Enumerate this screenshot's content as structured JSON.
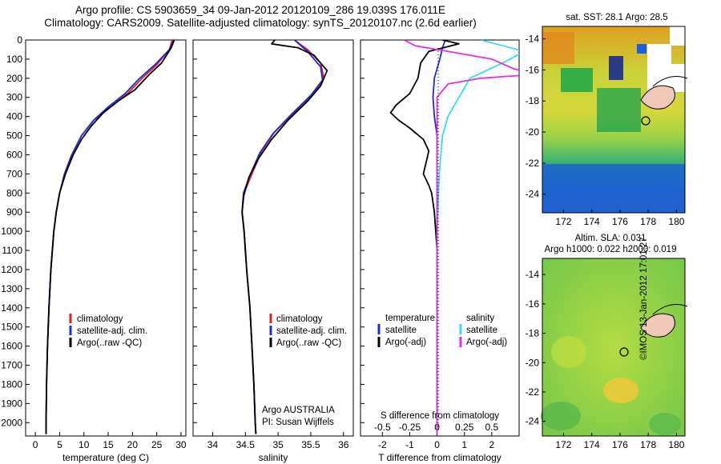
{
  "titles": {
    "line1": "Argo profile: CS 5903659_34 09-Jan-2012 20120109_286 19.039S 176.011E",
    "line2": "Climatology: CARS2009. Satellite-adjusted climatology: synTS_20120107.nc (2.6d earlier)"
  },
  "colors": {
    "climatology": "#e02020",
    "satellite": "#1a2be0",
    "argo": "#000000",
    "sat_sal": "#30e0f0",
    "argo_sal": "#e030e0"
  },
  "credit": "©IMOS 13-Jan-2012 17:01:27",
  "chart_data": [
    {
      "type": "line",
      "name": "temperature-profile",
      "xlabel": "temperature (deg C)",
      "xlim": [
        -2,
        31
      ],
      "xticks": [
        0,
        5,
        10,
        15,
        20,
        25,
        30
      ],
      "ylim": [
        2070,
        0
      ],
      "yticks": [
        0,
        100,
        200,
        300,
        400,
        500,
        600,
        700,
        800,
        900,
        1000,
        1100,
        1200,
        1300,
        1400,
        1500,
        1600,
        1700,
        1800,
        1900,
        2000
      ],
      "legend": [
        "climatology",
        "satellite-adj. clim.",
        "Argo(..raw -QC)"
      ],
      "series": [
        {
          "name": "climatology",
          "color": "#e02020",
          "points": [
            [
              28.2,
              0
            ],
            [
              27.6,
              50
            ],
            [
              25,
              130
            ],
            [
              22,
              200
            ],
            [
              19,
              280
            ],
            [
              15.5,
              350
            ],
            [
              12,
              420
            ],
            [
              9.5,
              500
            ],
            [
              7.5,
              600
            ],
            [
              6,
              700
            ],
            [
              5,
              800
            ],
            [
              4.3,
              900
            ],
            [
              3.8,
              1000
            ],
            [
              3.2,
              1200
            ],
            [
              2.8,
              1400
            ],
            [
              2.5,
              1600
            ],
            [
              2.3,
              1800
            ],
            [
              2.2,
              2000
            ],
            [
              2.2,
              2060
            ]
          ]
        },
        {
          "name": "satellite-adj. clim.",
          "color": "#1a2be0",
          "points": [
            [
              28.5,
              0
            ],
            [
              27.6,
              50
            ],
            [
              24.6,
              130
            ],
            [
              21.5,
              200
            ],
            [
              18.5,
              280
            ],
            [
              15,
              350
            ],
            [
              12,
              420
            ],
            [
              9.5,
              500
            ],
            [
              7.5,
              600
            ],
            [
              6,
              700
            ],
            [
              5,
              800
            ],
            [
              4.3,
              900
            ],
            [
              3.8,
              1000
            ],
            [
              3.2,
              1200
            ],
            [
              2.8,
              1400
            ],
            [
              2.5,
              1600
            ],
            [
              2.3,
              1800
            ],
            [
              2.2,
              2000
            ],
            [
              2.2,
              2060
            ]
          ]
        },
        {
          "name": "Argo(..raw -QC)",
          "color": "#000000",
          "points": [
            [
              28.6,
              0
            ],
            [
              28,
              40
            ],
            [
              26,
              120
            ],
            [
              23.5,
              180
            ],
            [
              20.5,
              260
            ],
            [
              17,
              320
            ],
            [
              14,
              380
            ],
            [
              11.5,
              450
            ],
            [
              9.5,
              520
            ],
            [
              7.8,
              600
            ],
            [
              6.2,
              700
            ],
            [
              5,
              800
            ],
            [
              4.3,
              900
            ],
            [
              3.8,
              1000
            ],
            [
              3.2,
              1200
            ],
            [
              2.8,
              1400
            ],
            [
              2.5,
              1600
            ],
            [
              2.3,
              1800
            ],
            [
              2.2,
              2000
            ],
            [
              2.2,
              2060
            ]
          ]
        }
      ]
    },
    {
      "type": "line",
      "name": "salinity-profile",
      "xlabel": "salinity",
      "xlim": [
        33.7,
        36.15
      ],
      "xticks": [
        34,
        34.5,
        35,
        35.5,
        36
      ],
      "ylim": [
        2070,
        0
      ],
      "legend": [
        "climatology",
        "satellite-adj. clim.",
        "Argo(..raw -QC)"
      ],
      "annotations": [
        "Argo AUSTRALIA",
        "PI: Susan Wijffels"
      ],
      "series": [
        {
          "name": "climatology",
          "color": "#e02020",
          "points": [
            [
              35.25,
              0
            ],
            [
              35.45,
              50
            ],
            [
              35.65,
              120
            ],
            [
              35.7,
              200
            ],
            [
              35.55,
              280
            ],
            [
              35.25,
              380
            ],
            [
              34.95,
              480
            ],
            [
              34.75,
              580
            ],
            [
              34.6,
              700
            ],
            [
              34.48,
              800
            ],
            [
              34.45,
              900
            ],
            [
              34.48,
              1000
            ],
            [
              34.52,
              1200
            ],
            [
              34.57,
              1400
            ],
            [
              34.6,
              1600
            ],
            [
              34.63,
              1800
            ],
            [
              34.65,
              2000
            ],
            [
              34.66,
              2060
            ]
          ]
        },
        {
          "name": "satellite-adj. clim.",
          "color": "#1a2be0",
          "points": [
            [
              35.25,
              0
            ],
            [
              35.45,
              60
            ],
            [
              35.65,
              140
            ],
            [
              35.68,
              210
            ],
            [
              35.5,
              290
            ],
            [
              35.2,
              390
            ],
            [
              34.92,
              490
            ],
            [
              34.72,
              590
            ],
            [
              34.58,
              700
            ],
            [
              34.47,
              800
            ],
            [
              34.45,
              900
            ],
            [
              34.48,
              1000
            ],
            [
              34.52,
              1200
            ],
            [
              34.57,
              1400
            ],
            [
              34.6,
              1600
            ],
            [
              34.63,
              1800
            ],
            [
              34.65,
              2000
            ],
            [
              34.66,
              2060
            ]
          ]
        },
        {
          "name": "Argo(..raw -QC)",
          "color": "#000000",
          "points": [
            [
              34.95,
              0
            ],
            [
              34.9,
              20
            ],
            [
              35.3,
              40
            ],
            [
              35.55,
              80
            ],
            [
              35.75,
              160
            ],
            [
              35.65,
              240
            ],
            [
              35.45,
              320
            ],
            [
              35.15,
              420
            ],
            [
              34.9,
              520
            ],
            [
              34.7,
              620
            ],
            [
              34.55,
              720
            ],
            [
              34.47,
              820
            ],
            [
              34.45,
              900
            ],
            [
              34.48,
              1000
            ],
            [
              34.52,
              1200
            ],
            [
              34.57,
              1400
            ],
            [
              34.6,
              1600
            ],
            [
              34.63,
              1800
            ],
            [
              34.65,
              2000
            ],
            [
              34.66,
              2060
            ]
          ]
        }
      ]
    },
    {
      "type": "line",
      "name": "difference-profile",
      "xlabel": "T difference from climatology",
      "xlabel_top": "S difference from climatology",
      "xlim": [
        -2.8,
        3.0
      ],
      "xticks": [
        -2,
        -1,
        0,
        1,
        2
      ],
      "sticks": [
        -0.5,
        -0.25,
        0,
        0.25,
        0.5
      ],
      "s_scale": 4,
      "ylim": [
        2070,
        0
      ],
      "legend_left": [
        "temperature",
        "satellite",
        "Argo(-adj)"
      ],
      "legend_right": [
        "salinity",
        "satellite",
        "Argo(-adj)"
      ],
      "series": [
        {
          "name": "temperature-satellite",
          "color": "#1a2be0",
          "points": [
            [
              0.3,
              0
            ],
            [
              0.2,
              40
            ],
            [
              0.1,
              100
            ],
            [
              -0.1,
              200
            ],
            [
              -0.15,
              300
            ],
            [
              -0.1,
              400
            ],
            [
              0,
              500
            ],
            [
              0,
              700
            ],
            [
              0,
              1000
            ],
            [
              0,
              1500
            ],
            [
              0,
              2060
            ]
          ]
        },
        {
          "name": "temperature-argo",
          "color": "#000000",
          "points": [
            [
              0.2,
              0
            ],
            [
              0.8,
              20
            ],
            [
              -0.3,
              60
            ],
            [
              -0.6,
              120
            ],
            [
              -0.7,
              200
            ],
            [
              -1.0,
              280
            ],
            [
              -1.5,
              340
            ],
            [
              -1.7,
              380
            ],
            [
              -1.4,
              420
            ],
            [
              -1.0,
              460
            ],
            [
              -0.5,
              520
            ],
            [
              -0.3,
              580
            ],
            [
              -0.4,
              640
            ],
            [
              -0.5,
              700
            ],
            [
              -0.3,
              760
            ],
            [
              -0.2,
              800
            ],
            [
              -0.1,
              900
            ],
            [
              -0.05,
              1000
            ],
            [
              0,
              1100
            ],
            [
              0,
              1500
            ],
            [
              0,
              2000
            ],
            [
              0,
              2060
            ]
          ]
        },
        {
          "name": "salinity-satellite",
          "color": "#30e0f0",
          "points": [
            [
              0.4,
              0
            ],
            [
              0.8,
              60
            ],
            [
              0.6,
              120
            ],
            [
              0.3,
              200
            ],
            [
              0.2,
              300
            ],
            [
              0.1,
              400
            ],
            [
              0.05,
              500
            ],
            [
              0.02,
              700
            ],
            [
              0,
              1000
            ],
            [
              0,
              2060
            ]
          ]
        },
        {
          "name": "salinity-argo",
          "color": "#e030e0",
          "points": [
            [
              -0.3,
              0
            ],
            [
              -0.2,
              30
            ],
            [
              0.1,
              60
            ],
            [
              0.5,
              100
            ],
            [
              0.7,
              150
            ],
            [
              0.9,
              180
            ],
            [
              0.4,
              200
            ],
            [
              0.1,
              230
            ],
            [
              0,
              300
            ],
            [
              0,
              2060
            ]
          ]
        }
      ]
    }
  ],
  "maps": {
    "sst": {
      "title": "sat. SST: 28.1  Argo: 28.5",
      "xticks": [
        172,
        174,
        176,
        178,
        180
      ],
      "yticks": [
        -14,
        -16,
        -18,
        -20,
        -22,
        -24
      ]
    },
    "sla": {
      "title1": "Altim. SLA: 0.031",
      "title2": "Argo h1000: 0.022 h2000: 0.019",
      "xticks": [
        172,
        174,
        176,
        178,
        180
      ],
      "yticks": [
        -14,
        -16,
        -18,
        -20,
        -22,
        -24
      ]
    }
  }
}
